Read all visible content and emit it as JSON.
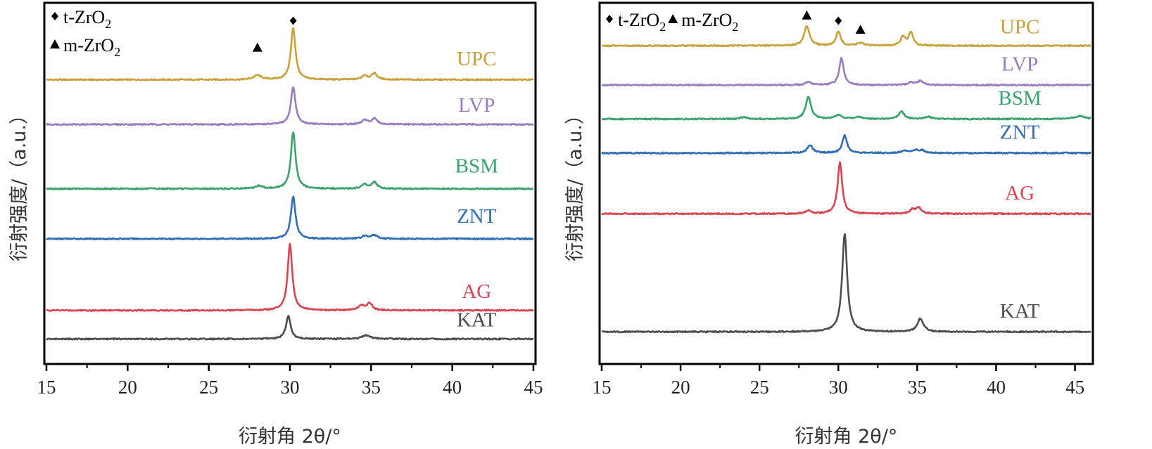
{
  "chart_data": [
    {
      "type": "line",
      "xlabel": "衍射角 2θ/°",
      "ylabel": "衍射强度/（a.u.）",
      "xlim": [
        15,
        45
      ],
      "xticks": [
        "15",
        "20",
        "25",
        "30",
        "35",
        "40",
        "45"
      ],
      "legend": [
        {
          "marker": "diamond",
          "text": "t-ZrO",
          "sub": "2"
        },
        {
          "marker": "triangle",
          "text": "m-ZrO",
          "sub": "2"
        }
      ],
      "legend_layout": "stacked",
      "markers": [
        {
          "marker": "diamond",
          "x": 30.2,
          "y": 8.7
        },
        {
          "marker": "triangle",
          "x": 28.0,
          "y": 7.95
        }
      ],
      "series": [
        {
          "name": "UPC",
          "color": "#c9a13a",
          "baseline": 7.05,
          "label_x": 41.5,
          "label_y": 7.45,
          "peaks": [
            {
              "x": 28.0,
              "h": 0.12,
              "w": 0.28
            },
            {
              "x": 30.2,
              "h": 1.45,
              "w": 0.17
            },
            {
              "x": 34.6,
              "h": 0.12,
              "w": 0.2
            },
            {
              "x": 35.2,
              "h": 0.18,
              "w": 0.2
            }
          ]
        },
        {
          "name": "LVP",
          "color": "#9a7cc0",
          "baseline": 5.8,
          "label_x": 41.5,
          "label_y": 6.15,
          "peaks": [
            {
              "x": 30.2,
              "h": 1.05,
              "w": 0.17
            },
            {
              "x": 34.6,
              "h": 0.12,
              "w": 0.2
            },
            {
              "x": 35.2,
              "h": 0.16,
              "w": 0.2
            }
          ]
        },
        {
          "name": "BSM",
          "color": "#3aa36a",
          "baseline": 4.0,
          "label_x": 41.5,
          "label_y": 4.45,
          "peaks": [
            {
              "x": 28.1,
              "h": 0.08,
              "w": 0.25
            },
            {
              "x": 30.2,
              "h": 1.6,
              "w": 0.17
            },
            {
              "x": 34.6,
              "h": 0.12,
              "w": 0.2
            },
            {
              "x": 35.2,
              "h": 0.18,
              "w": 0.2
            }
          ]
        },
        {
          "name": "ZNT",
          "color": "#2f6db5",
          "baseline": 2.6,
          "label_x": 41.5,
          "label_y": 3.05,
          "peaks": [
            {
              "x": 30.2,
              "h": 1.18,
              "w": 0.17
            },
            {
              "x": 34.6,
              "h": 0.08,
              "w": 0.2
            },
            {
              "x": 35.2,
              "h": 0.1,
              "w": 0.25
            }
          ]
        },
        {
          "name": "AG",
          "color": "#d94453",
          "baseline": 0.6,
          "label_x": 41.5,
          "label_y": 0.95,
          "peaks": [
            {
              "x": 30.0,
              "h": 1.85,
              "w": 0.17
            },
            {
              "x": 34.4,
              "h": 0.14,
              "w": 0.2
            },
            {
              "x": 34.9,
              "h": 0.2,
              "w": 0.2
            }
          ]
        },
        {
          "name": "KAT",
          "color": "#4d4d4d",
          "baseline": -0.2,
          "label_x": 41.5,
          "label_y": 0.15,
          "peaks": [
            {
              "x": 29.9,
              "h": 0.65,
              "w": 0.17
            },
            {
              "x": 34.7,
              "h": 0.1,
              "w": 0.3
            }
          ]
        }
      ]
    },
    {
      "type": "line",
      "xlabel": "衍射角 2θ/°",
      "ylabel": "衍射强度/（a.u.）",
      "xlim": [
        15,
        46
      ],
      "xticks": [
        "15",
        "20",
        "25",
        "30",
        "35",
        "40",
        "45"
      ],
      "legend": [
        {
          "marker": "diamond",
          "text": "t-ZrO",
          "sub": "2"
        },
        {
          "marker": "triangle",
          "text": "m-ZrO",
          "sub": "2"
        }
      ],
      "legend_layout": "inline",
      "markers": [
        {
          "marker": "triangle",
          "x": 28.0,
          "y": 8.85
        },
        {
          "marker": "diamond",
          "x": 30.0,
          "y": 8.7
        },
        {
          "marker": "triangle",
          "x": 31.4,
          "y": 8.45
        }
      ],
      "series": [
        {
          "name": "UPC",
          "color": "#c9a13a",
          "baseline": 8.0,
          "label_x": 41.5,
          "label_y": 8.35,
          "peaks": [
            {
              "x": 28.0,
              "h": 0.55,
              "w": 0.2
            },
            {
              "x": 30.0,
              "h": 0.4,
              "w": 0.17
            },
            {
              "x": 31.4,
              "h": 0.08,
              "w": 0.25
            },
            {
              "x": 34.1,
              "h": 0.25,
              "w": 0.17
            },
            {
              "x": 34.6,
              "h": 0.38,
              "w": 0.17
            }
          ]
        },
        {
          "name": "LVP",
          "color": "#9a7cc0",
          "baseline": 6.9,
          "label_x": 41.5,
          "label_y": 7.3,
          "peaks": [
            {
              "x": 28.1,
              "h": 0.08,
              "w": 0.25
            },
            {
              "x": 30.2,
              "h": 0.75,
              "w": 0.17
            },
            {
              "x": 34.6,
              "h": 0.08,
              "w": 0.2
            },
            {
              "x": 35.2,
              "h": 0.12,
              "w": 0.2
            }
          ]
        },
        {
          "name": "BSM",
          "color": "#3aa36a",
          "baseline": 5.95,
          "label_x": 41.5,
          "label_y": 6.35,
          "peaks": [
            {
              "x": 24.0,
              "h": 0.05,
              "w": 0.25
            },
            {
              "x": 28.1,
              "h": 0.62,
              "w": 0.2
            },
            {
              "x": 30.0,
              "h": 0.1,
              "w": 0.3
            },
            {
              "x": 31.3,
              "h": 0.06,
              "w": 0.25
            },
            {
              "x": 34.0,
              "h": 0.22,
              "w": 0.2
            },
            {
              "x": 35.7,
              "h": 0.06,
              "w": 0.25
            },
            {
              "x": 45.3,
              "h": 0.08,
              "w": 0.4
            }
          ]
        },
        {
          "name": "ZNT",
          "color": "#2f6db5",
          "baseline": 5.0,
          "label_x": 41.5,
          "label_y": 5.4,
          "peaks": [
            {
              "x": 28.2,
              "h": 0.22,
              "w": 0.2
            },
            {
              "x": 30.4,
              "h": 0.5,
              "w": 0.17
            },
            {
              "x": 34.2,
              "h": 0.07,
              "w": 0.2
            },
            {
              "x": 34.9,
              "h": 0.07,
              "w": 0.2
            },
            {
              "x": 35.3,
              "h": 0.08,
              "w": 0.2
            }
          ]
        },
        {
          "name": "AG",
          "color": "#d94453",
          "baseline": 3.3,
          "label_x": 41.5,
          "label_y": 3.7,
          "peaks": [
            {
              "x": 28.1,
              "h": 0.08,
              "w": 0.25
            },
            {
              "x": 30.1,
              "h": 1.45,
              "w": 0.17
            },
            {
              "x": 34.7,
              "h": 0.12,
              "w": 0.2
            },
            {
              "x": 35.1,
              "h": 0.16,
              "w": 0.2
            }
          ]
        },
        {
          "name": "KAT",
          "color": "#4d4d4d",
          "baseline": 0.0,
          "label_x": 41.5,
          "label_y": 0.4,
          "peaks": [
            {
              "x": 30.4,
              "h": 2.75,
              "w": 0.19
            },
            {
              "x": 35.2,
              "h": 0.38,
              "w": 0.22
            }
          ]
        }
      ]
    }
  ]
}
